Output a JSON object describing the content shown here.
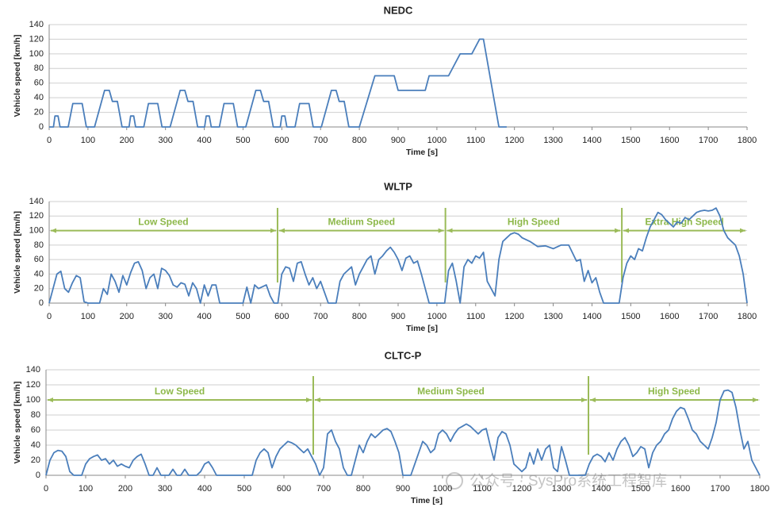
{
  "chart_data": [
    {
      "type": "line",
      "title": "NEDC",
      "x_label": "Time [s]",
      "y_label": "Vehicle speed [km/h]",
      "color": "#4a7ebb",
      "x": [
        0,
        11,
        15,
        23,
        28,
        49,
        61,
        85,
        96,
        117,
        143,
        155,
        163,
        176,
        188,
        195,
        206,
        210,
        218,
        223,
        244,
        256,
        280,
        291,
        312,
        338,
        350,
        358,
        371,
        383,
        390,
        401,
        405,
        413,
        418,
        439,
        451,
        475,
        486,
        507,
        533,
        545,
        553,
        566,
        578,
        585,
        596,
        600,
        608,
        613,
        634,
        646,
        670,
        681,
        702,
        728,
        740,
        748,
        761,
        773,
        800,
        820,
        840,
        890,
        900,
        970,
        980,
        1030,
        1060,
        1090,
        1110,
        1120,
        1150,
        1160,
        1180
      ],
      "values": [
        0,
        0,
        15,
        15,
        0,
        0,
        32,
        32,
        0,
        0,
        50,
        50,
        35,
        35,
        0,
        0,
        0,
        15,
        15,
        0,
        0,
        32,
        32,
        0,
        0,
        50,
        50,
        35,
        35,
        0,
        0,
        0,
        15,
        15,
        0,
        0,
        32,
        32,
        0,
        0,
        50,
        50,
        35,
        35,
        0,
        0,
        0,
        15,
        15,
        0,
        0,
        32,
        32,
        0,
        0,
        50,
        50,
        35,
        35,
        0,
        0,
        35,
        70,
        70,
        50,
        50,
        70,
        70,
        100,
        100,
        120,
        120,
        30,
        0,
        0
      ],
      "xlim": [
        0,
        1800
      ],
      "ylim": [
        0,
        140
      ],
      "xticks": [
        0,
        100,
        200,
        300,
        400,
        500,
        600,
        700,
        800,
        900,
        1000,
        1100,
        1200,
        1300,
        1400,
        1500,
        1600,
        1700,
        1800
      ],
      "yticks": [
        0,
        20,
        40,
        60,
        80,
        100,
        120,
        140
      ],
      "grid": true
    },
    {
      "type": "line",
      "title": "WLTP",
      "x_label": "Time [s]",
      "y_label": "Vehicle speed [km/h]",
      "color": "#4a7ebb",
      "x": [
        0,
        10,
        20,
        30,
        40,
        50,
        60,
        70,
        80,
        90,
        100,
        120,
        130,
        140,
        150,
        160,
        170,
        180,
        190,
        200,
        210,
        220,
        230,
        240,
        250,
        260,
        270,
        280,
        290,
        300,
        310,
        320,
        330,
        340,
        350,
        360,
        370,
        380,
        390,
        400,
        410,
        420,
        430,
        440,
        500,
        510,
        520,
        530,
        540,
        560,
        570,
        580,
        590,
        600,
        610,
        620,
        630,
        640,
        650,
        660,
        670,
        680,
        690,
        700,
        710,
        720,
        740,
        750,
        760,
        770,
        780,
        790,
        800,
        810,
        820,
        830,
        840,
        850,
        860,
        870,
        880,
        890,
        900,
        910,
        920,
        930,
        940,
        950,
        960,
        970,
        980,
        1020,
        1030,
        1040,
        1050,
        1060,
        1070,
        1080,
        1090,
        1100,
        1110,
        1120,
        1130,
        1140,
        1150,
        1160,
        1170,
        1180,
        1190,
        1200,
        1210,
        1220,
        1240,
        1260,
        1280,
        1300,
        1320,
        1340,
        1360,
        1370,
        1380,
        1390,
        1400,
        1410,
        1420,
        1430,
        1470,
        1480,
        1490,
        1500,
        1510,
        1520,
        1530,
        1540,
        1550,
        1560,
        1570,
        1580,
        1590,
        1600,
        1610,
        1620,
        1630,
        1640,
        1650,
        1660,
        1670,
        1680,
        1690,
        1700,
        1710,
        1720,
        1730,
        1740,
        1750,
        1760,
        1770,
        1780,
        1790,
        1800
      ],
      "values": [
        0,
        20,
        40,
        44,
        20,
        15,
        28,
        38,
        35,
        2,
        0,
        0,
        0,
        20,
        12,
        40,
        30,
        15,
        38,
        25,
        42,
        55,
        57,
        45,
        20,
        35,
        40,
        20,
        48,
        45,
        38,
        25,
        22,
        28,
        26,
        10,
        28,
        20,
        0,
        25,
        10,
        25,
        25,
        0,
        0,
        22,
        0,
        25,
        20,
        25,
        10,
        0,
        0,
        40,
        50,
        48,
        30,
        55,
        57,
        40,
        25,
        35,
        20,
        30,
        15,
        0,
        0,
        30,
        40,
        45,
        50,
        25,
        40,
        50,
        60,
        65,
        40,
        60,
        65,
        72,
        77,
        70,
        60,
        45,
        62,
        65,
        55,
        58,
        40,
        20,
        0,
        0,
        45,
        55,
        30,
        0,
        50,
        60,
        55,
        65,
        62,
        70,
        30,
        20,
        10,
        60,
        85,
        90,
        95,
        97,
        95,
        90,
        85,
        78,
        79,
        75,
        80,
        80,
        58,
        60,
        30,
        45,
        28,
        35,
        15,
        0,
        0,
        35,
        55,
        65,
        60,
        75,
        72,
        90,
        105,
        115,
        125,
        122,
        115,
        110,
        105,
        112,
        110,
        118,
        115,
        120,
        125,
        127,
        128,
        127,
        128,
        131,
        120,
        100,
        90,
        85,
        80,
        65,
        40,
        0
      ],
      "xlim": [
        0,
        1800
      ],
      "ylim": [
        0,
        140
      ],
      "xticks": [
        0,
        100,
        200,
        300,
        400,
        500,
        600,
        700,
        800,
        900,
        1000,
        1100,
        1200,
        1300,
        1400,
        1500,
        1600,
        1700,
        1800
      ],
      "yticks": [
        0,
        20,
        40,
        60,
        80,
        100,
        120,
        140
      ],
      "grid": true,
      "phase_color": "#9bbb59",
      "phase_arrow_at": 100,
      "phases": [
        {
          "label": "Low Speed",
          "start": 0,
          "end": 589
        },
        {
          "label": "Medium Speed",
          "start": 589,
          "end": 1022
        },
        {
          "label": "High Speed",
          "start": 1022,
          "end": 1477
        },
        {
          "label": "Extra High Speed",
          "start": 1477,
          "end": 1800
        }
      ]
    },
    {
      "type": "line",
      "title": "CLTC-P",
      "x_label": "Time [s]",
      "y_label": "Vehicle speed [km/h]",
      "color": "#4a7ebb",
      "x": [
        0,
        10,
        20,
        30,
        40,
        50,
        60,
        70,
        90,
        100,
        110,
        120,
        130,
        140,
        150,
        160,
        170,
        180,
        190,
        200,
        210,
        220,
        230,
        240,
        250,
        260,
        270,
        280,
        290,
        310,
        320,
        330,
        340,
        350,
        360,
        380,
        390,
        400,
        410,
        420,
        430,
        520,
        530,
        540,
        550,
        560,
        570,
        580,
        590,
        600,
        610,
        620,
        630,
        640,
        650,
        660,
        670,
        680,
        690,
        700,
        710,
        720,
        730,
        740,
        750,
        760,
        770,
        780,
        790,
        800,
        810,
        820,
        830,
        840,
        850,
        860,
        870,
        880,
        890,
        900,
        920,
        930,
        940,
        950,
        960,
        970,
        980,
        990,
        1000,
        1010,
        1020,
        1030,
        1040,
        1050,
        1060,
        1070,
        1080,
        1090,
        1100,
        1110,
        1120,
        1130,
        1140,
        1150,
        1160,
        1170,
        1180,
        1190,
        1200,
        1210,
        1220,
        1230,
        1240,
        1250,
        1260,
        1270,
        1280,
        1290,
        1300,
        1310,
        1320,
        1360,
        1370,
        1380,
        1390,
        1400,
        1410,
        1420,
        1430,
        1440,
        1450,
        1460,
        1470,
        1480,
        1490,
        1500,
        1510,
        1520,
        1530,
        1540,
        1550,
        1560,
        1570,
        1580,
        1590,
        1600,
        1610,
        1620,
        1630,
        1640,
        1650,
        1660,
        1670,
        1680,
        1690,
        1700,
        1710,
        1720,
        1730,
        1740,
        1750,
        1760,
        1770,
        1780,
        1790,
        1800
      ],
      "values": [
        0,
        20,
        30,
        33,
        32,
        25,
        5,
        0,
        0,
        15,
        22,
        25,
        27,
        20,
        22,
        15,
        20,
        12,
        15,
        12,
        10,
        20,
        25,
        28,
        15,
        0,
        0,
        10,
        0,
        0,
        8,
        0,
        0,
        8,
        0,
        0,
        5,
        15,
        18,
        10,
        0,
        0,
        20,
        30,
        35,
        30,
        10,
        25,
        35,
        40,
        45,
        43,
        40,
        35,
        30,
        35,
        25,
        15,
        0,
        10,
        55,
        60,
        45,
        35,
        10,
        0,
        0,
        20,
        40,
        30,
        45,
        55,
        50,
        55,
        60,
        62,
        58,
        45,
        30,
        0,
        0,
        15,
        30,
        45,
        40,
        30,
        35,
        55,
        60,
        55,
        45,
        55,
        62,
        65,
        68,
        65,
        60,
        55,
        60,
        62,
        40,
        20,
        50,
        58,
        55,
        40,
        15,
        10,
        5,
        10,
        30,
        15,
        35,
        20,
        35,
        40,
        10,
        5,
        38,
        20,
        0,
        0,
        15,
        25,
        28,
        25,
        18,
        30,
        20,
        35,
        45,
        50,
        40,
        25,
        30,
        38,
        35,
        10,
        30,
        40,
        45,
        55,
        60,
        75,
        85,
        90,
        88,
        75,
        60,
        55,
        45,
        40,
        35,
        50,
        70,
        100,
        112,
        113,
        110,
        90,
        60,
        35,
        45,
        20,
        10,
        0
      ],
      "xlim": [
        0,
        1800
      ],
      "ylim": [
        0,
        140
      ],
      "xticks": [
        0,
        100,
        200,
        300,
        400,
        500,
        600,
        700,
        800,
        900,
        1000,
        1100,
        1200,
        1300,
        1400,
        1500,
        1600,
        1700,
        1800
      ],
      "yticks": [
        0,
        20,
        40,
        60,
        80,
        100,
        120,
        140
      ],
      "grid": true,
      "phase_color": "#9bbb59",
      "phase_arrow_at": 100,
      "phases": [
        {
          "label": "Low Speed",
          "start": 0,
          "end": 674
        },
        {
          "label": "Medium Speed",
          "start": 674,
          "end": 1368
        },
        {
          "label": "High Speed",
          "start": 1368,
          "end": 1800
        }
      ]
    }
  ],
  "watermark": "公众号 · SysPro系统工程智库"
}
